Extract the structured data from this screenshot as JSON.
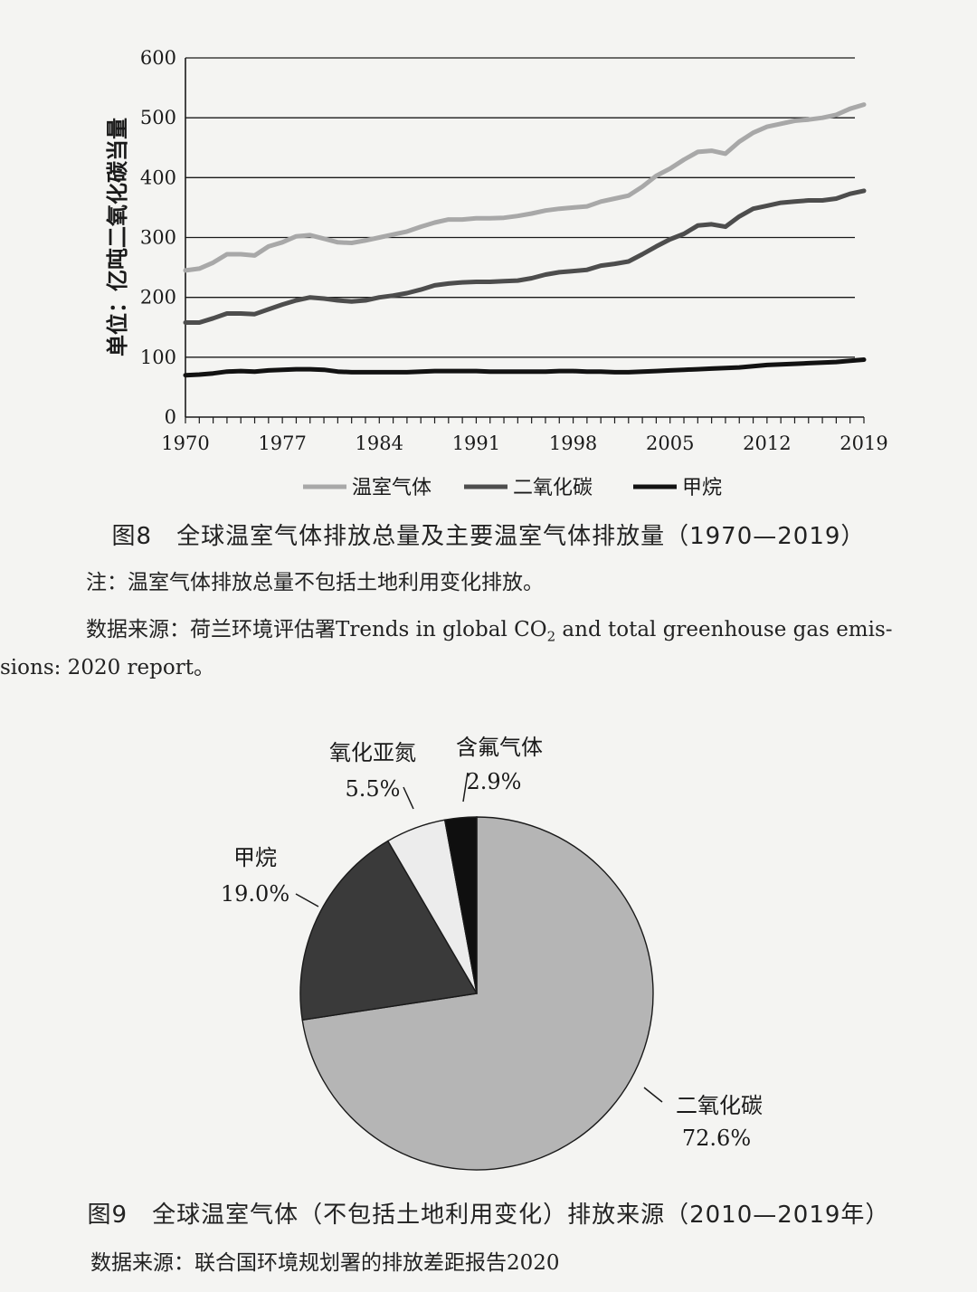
{
  "chart_data": [
    {
      "type": "line",
      "title": "图8　全球温室气体排放总量及主要温室气体排放量（1970—2019）",
      "ylabel": "单位：亿吨二氧化碳当量",
      "xlabel": "",
      "ylim": [
        0,
        600
      ],
      "yticks": [
        0,
        100,
        200,
        300,
        400,
        500,
        600
      ],
      "xticks": [
        1970,
        1977,
        1984,
        1991,
        1998,
        2005,
        2012,
        2019
      ],
      "xlim": [
        1970,
        2019
      ],
      "grid": true,
      "legend": "bottom",
      "x": [
        1970,
        1971,
        1972,
        1973,
        1974,
        1975,
        1976,
        1977,
        1978,
        1979,
        1980,
        1981,
        1982,
        1983,
        1984,
        1985,
        1986,
        1987,
        1988,
        1989,
        1990,
        1991,
        1992,
        1993,
        1994,
        1995,
        1996,
        1997,
        1998,
        1999,
        2000,
        2001,
        2002,
        2003,
        2004,
        2005,
        2006,
        2007,
        2008,
        2009,
        2010,
        2011,
        2012,
        2013,
        2014,
        2015,
        2016,
        2017,
        2018,
        2019
      ],
      "series": [
        {
          "name": "温室气体",
          "color": "#a8a8a8",
          "values": [
            245,
            248,
            258,
            272,
            272,
            270,
            285,
            292,
            302,
            304,
            298,
            292,
            291,
            295,
            300,
            305,
            310,
            318,
            325,
            330,
            330,
            332,
            332,
            333,
            336,
            340,
            345,
            348,
            350,
            352,
            360,
            365,
            370,
            385,
            403,
            415,
            430,
            443,
            445,
            440,
            460,
            475,
            485,
            490,
            495,
            497,
            500,
            505,
            515,
            522
          ]
        },
        {
          "name": "二氧化碳",
          "color": "#4d4d4d",
          "values": [
            158,
            158,
            165,
            173,
            173,
            172,
            180,
            188,
            195,
            200,
            198,
            195,
            193,
            195,
            200,
            203,
            207,
            213,
            220,
            223,
            225,
            226,
            226,
            227,
            228,
            232,
            238,
            242,
            244,
            246,
            253,
            256,
            260,
            272,
            285,
            297,
            306,
            320,
            322,
            318,
            335,
            348,
            353,
            358,
            360,
            362,
            362,
            365,
            373,
            378
          ]
        },
        {
          "name": "甲烷",
          "color": "#121212",
          "values": [
            70,
            71,
            73,
            76,
            77,
            76,
            78,
            79,
            80,
            80,
            79,
            76,
            75,
            75,
            75,
            75,
            75,
            76,
            77,
            77,
            77,
            77,
            76,
            76,
            76,
            76,
            76,
            77,
            77,
            76,
            76,
            75,
            75,
            76,
            77,
            78,
            79,
            80,
            81,
            82,
            83,
            85,
            87,
            88,
            89,
            90,
            91,
            92,
            94,
            96
          ]
        }
      ]
    },
    {
      "type": "pie",
      "title": "图9　全球温室气体（不包括土地利用变化）排放来源（2010—2019年）",
      "slices": [
        {
          "name": "二氧化碳",
          "value": 72.6,
          "label": "72.6%",
          "color": "#b5b5b5"
        },
        {
          "name": "甲烷",
          "value": 19.0,
          "label": "19.0%",
          "color": "#3a3a3a"
        },
        {
          "name": "氧化亚氮",
          "value": 5.5,
          "label": "5.5%",
          "color": "#ececec"
        },
        {
          "name": "含氟气体",
          "value": 2.9,
          "label": "2.9%",
          "color": "#0f0f0f"
        }
      ]
    }
  ],
  "captions": {
    "fig8": "图8　全球温室气体排放总量及主要温室气体排放量（1970—2019）",
    "fig8_note": "注：温室气体排放总量不包括土地利用变化排放。",
    "fig8_source_a": "数据来源：荷兰环境评估署Trends in global CO",
    "fig8_source_sub": "2",
    "fig8_source_b": " and total greenhouse gas emis-",
    "fig8_source_c": "sions: 2020 report。",
    "fig9": "图9　全球温室气体（不包括土地利用变化）排放来源（2010—2019年）",
    "fig9_source": "数据来源：联合国环境规划署的排放差距报告2020"
  }
}
